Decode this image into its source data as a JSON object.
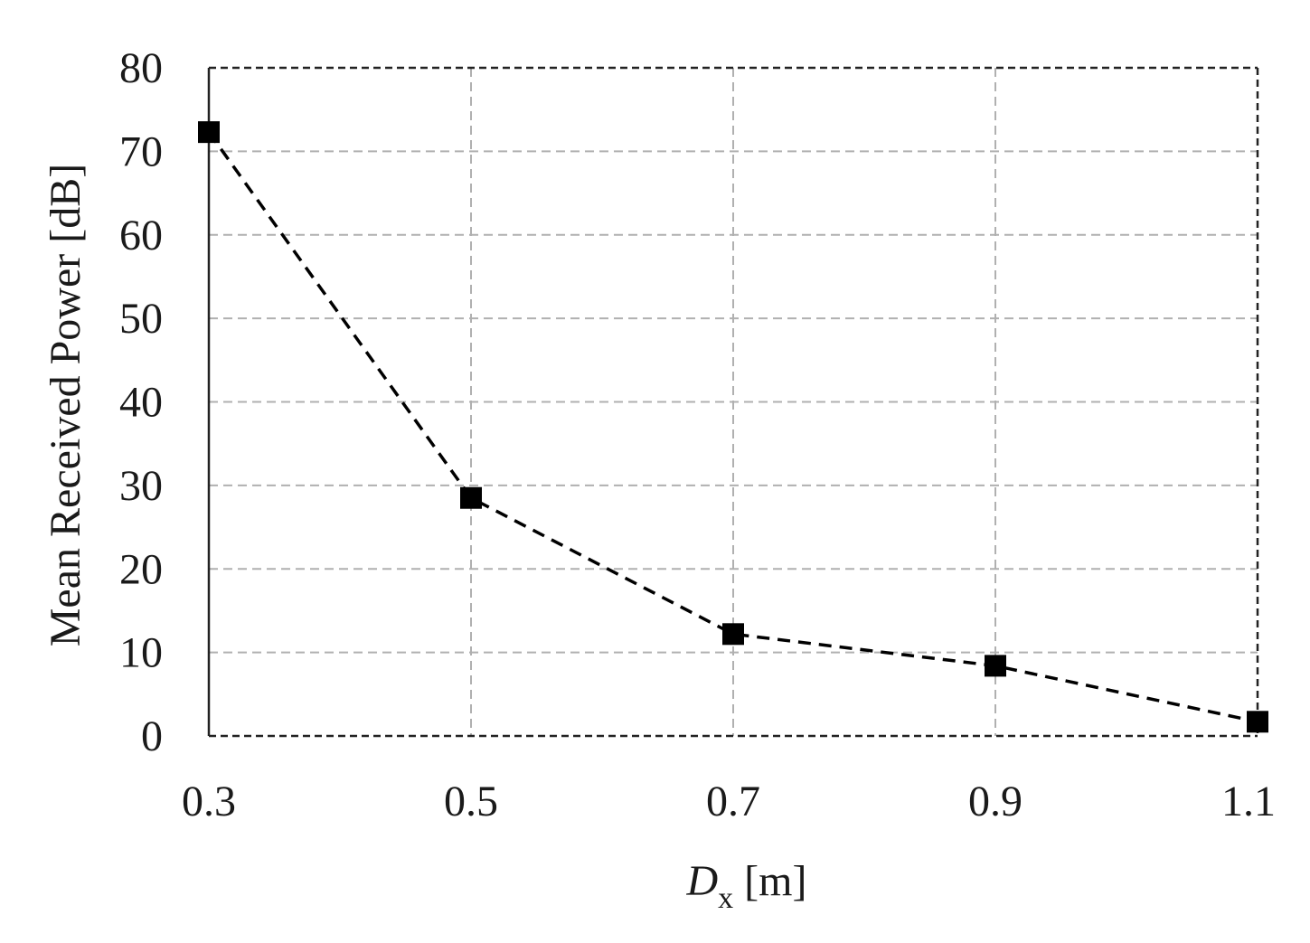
{
  "chart_data": {
    "type": "line",
    "title": "",
    "xlabel": {
      "main": "D",
      "sub": "x",
      "unit": " [m]"
    },
    "ylabel": "Mean Received Power [dB]",
    "x_ticks": [
      "0.3",
      "0.5",
      "0.7",
      "0.9",
      "1.1"
    ],
    "y_ticks": [
      "0",
      "10",
      "20",
      "30",
      "40",
      "50",
      "60",
      "70",
      "80"
    ],
    "xlim": [
      0.3,
      1.1
    ],
    "ylim": [
      0,
      80
    ],
    "grid": true,
    "series": [
      {
        "x": [
          0.3,
          0.5,
          0.7,
          0.9,
          1.1
        ],
        "y": [
          72.3,
          28.5,
          12.2,
          8.4,
          1.7
        ],
        "marker": "square",
        "line_style": "dashed",
        "color": "#000000"
      }
    ]
  }
}
